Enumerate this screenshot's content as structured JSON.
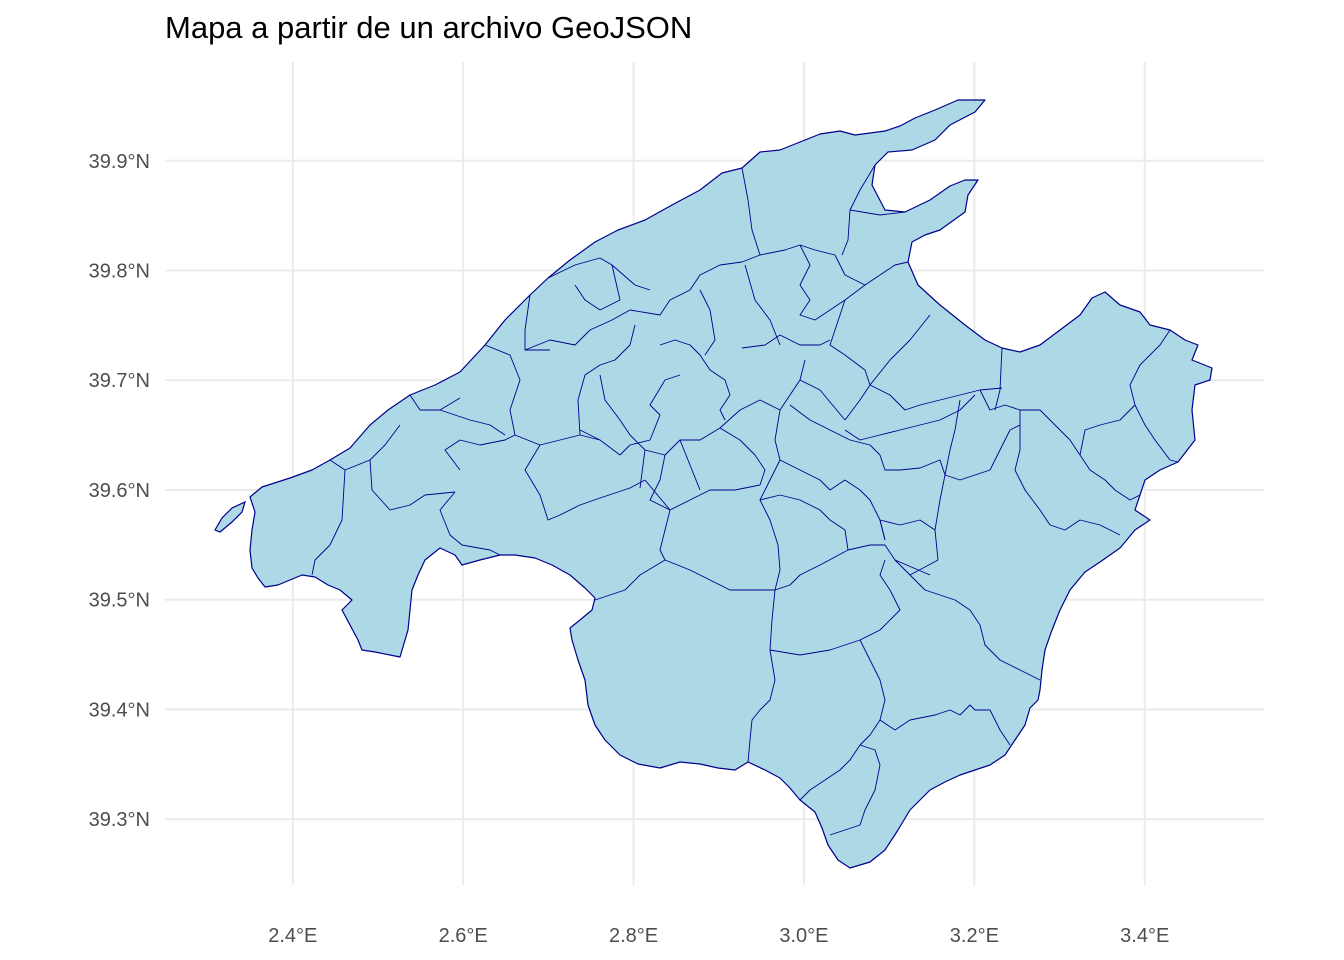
{
  "title": "Mapa a partir de un archivo GeoJSON",
  "colors": {
    "land_fill": "#add8e6",
    "border": "#00008b",
    "grid": "#ebebeb",
    "background": "#ffffff",
    "axis_text": "#4d4d4d"
  },
  "axes": {
    "x_ticks": [
      {
        "value": 2.4,
        "label": "2.4°E"
      },
      {
        "value": 2.6,
        "label": "2.6°E"
      },
      {
        "value": 2.8,
        "label": "2.8°E"
      },
      {
        "value": 3.0,
        "label": "3.0°E"
      },
      {
        "value": 3.2,
        "label": "3.2°E"
      },
      {
        "value": 3.4,
        "label": "3.4°E"
      }
    ],
    "y_ticks": [
      {
        "value": 39.3,
        "label": "39.3°N"
      },
      {
        "value": 39.4,
        "label": "39.4°N"
      },
      {
        "value": 39.5,
        "label": "39.5°N"
      },
      {
        "value": 39.6,
        "label": "39.6°N"
      },
      {
        "value": 39.7,
        "label": "39.7°N"
      },
      {
        "value": 39.8,
        "label": "39.8°N"
      },
      {
        "value": 39.9,
        "label": "39.9°N"
      }
    ],
    "xlim": [
      2.25,
      3.54
    ],
    "ylim": [
      39.24,
      39.99
    ]
  }
}
